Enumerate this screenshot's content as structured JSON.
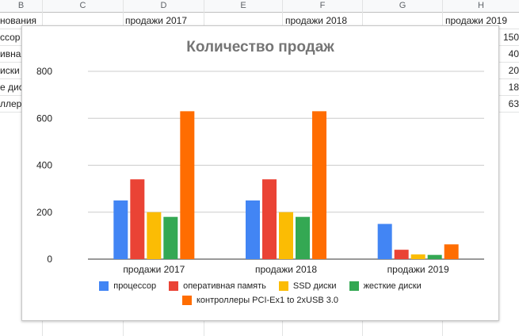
{
  "sheet": {
    "columns": [
      "B",
      "C",
      "D",
      "E",
      "F",
      "G",
      "H"
    ],
    "headers": {
      "b": "нования",
      "d": "продажи 2017",
      "f": "продажи 2018",
      "h": "продажи 2019"
    },
    "row_labels": [
      "ссор",
      "ивна",
      "иски",
      "е дис",
      "ллер"
    ],
    "h_values": [
      "150",
      "40",
      "20",
      "18",
      "63"
    ]
  },
  "chart_data": {
    "type": "bar",
    "title": "Количество продаж",
    "categories": [
      "продажи 2017",
      "продажи 2018",
      "продажи 2019"
    ],
    "series": [
      {
        "name": "процессор",
        "values": [
          250,
          250,
          150
        ]
      },
      {
        "name": "оперативная память",
        "values": [
          340,
          340,
          40
        ]
      },
      {
        "name": "SSD диски",
        "values": [
          200,
          200,
          20
        ]
      },
      {
        "name": "жесткие диски",
        "values": [
          180,
          180,
          18
        ]
      },
      {
        "name": "контроллеры PCI-Ex1 to 2xUSB 3.0",
        "values": [
          630,
          630,
          63
        ]
      }
    ],
    "colors": [
      "#4285f4",
      "#ea4335",
      "#fbbc04",
      "#34a853",
      "#ff6d01"
    ],
    "ylim": [
      0,
      800
    ],
    "yticks": [
      0,
      200,
      400,
      600,
      800
    ],
    "grid": true,
    "legend_position": "bottom"
  }
}
